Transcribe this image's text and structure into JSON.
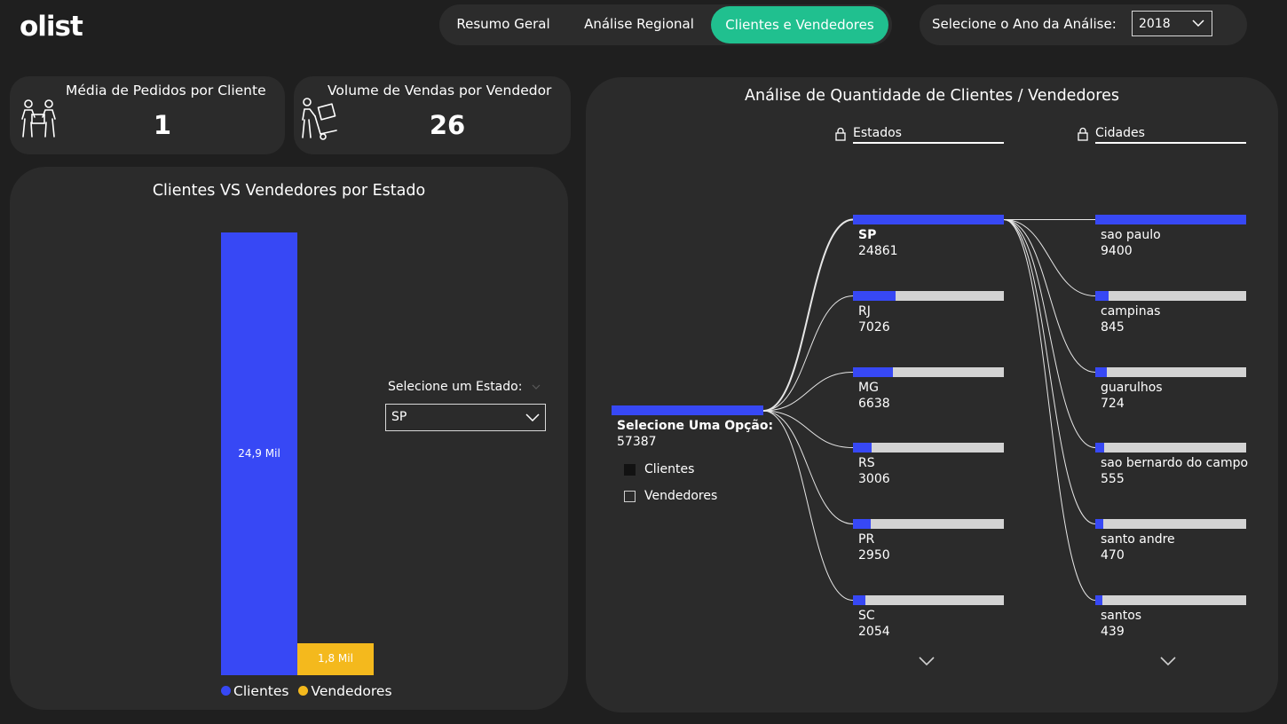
{
  "app": {
    "logo": "olist"
  },
  "nav": {
    "tabs": [
      {
        "label": "Resumo Geral",
        "active": false
      },
      {
        "label": "Análise Regional",
        "active": false
      },
      {
        "label": "Clientes e Vendedores",
        "active": true
      }
    ]
  },
  "year_filter": {
    "label": "Selecione o Ano da Análise:",
    "value": "2018"
  },
  "kpis": {
    "orders_per_client": {
      "title": "Média de Pedidos por Cliente",
      "value": "1",
      "icon": "people-boxes-icon"
    },
    "sales_per_seller": {
      "title": "Volume de Vendas por Vendedor",
      "value": "26",
      "icon": "person-hand-truck-icon"
    }
  },
  "bar_panel": {
    "title": "Clientes VS Vendedores por Estado",
    "state_filter": {
      "label": "Selecione um Estado:",
      "value": "SP"
    }
  },
  "chart_data": {
    "type": "bar",
    "title": "Clientes VS Vendedores por Estado",
    "categories": [
      "SP"
    ],
    "series": [
      {
        "name": "Clientes",
        "values": [
          24.9
        ],
        "label": "24,9 Mil",
        "color": "#3748f5"
      },
      {
        "name": "Vendedores",
        "values": [
          1.8
        ],
        "label": "1,8 Mil",
        "color": "#f4b91d"
      }
    ],
    "ylim": [
      0,
      24.9
    ],
    "legend": "bottom"
  },
  "tree_panel": {
    "title": "Análise de Quantidade de Clientes / Vendedores",
    "columns": {
      "estados": "Estados",
      "cidades": "Cidades"
    },
    "root": {
      "label": "Selecione Uma Opção:",
      "value": "57387"
    },
    "options": [
      {
        "label": "Clientes",
        "checked": true
      },
      {
        "label": "Vendedores",
        "checked": false
      }
    ],
    "estados": [
      {
        "name": "SP",
        "value": "24861",
        "fraction": 1.0,
        "selected": true
      },
      {
        "name": "RJ",
        "value": "7026",
        "fraction": 0.283
      },
      {
        "name": "MG",
        "value": "6638",
        "fraction": 0.267
      },
      {
        "name": "RS",
        "value": "3006",
        "fraction": 0.121
      },
      {
        "name": "PR",
        "value": "2950",
        "fraction": 0.119
      },
      {
        "name": "SC",
        "value": "2054",
        "fraction": 0.083
      }
    ],
    "cidades": [
      {
        "name": "sao paulo",
        "value": "9400",
        "fraction": 1.0
      },
      {
        "name": "campinas",
        "value": "845",
        "fraction": 0.09
      },
      {
        "name": "guarulhos",
        "value": "724",
        "fraction": 0.077
      },
      {
        "name": "sao bernardo do campo",
        "value": "555",
        "fraction": 0.059
      },
      {
        "name": "santo andre",
        "value": "470",
        "fraction": 0.05
      },
      {
        "name": "santos",
        "value": "439",
        "fraction": 0.047
      }
    ]
  }
}
